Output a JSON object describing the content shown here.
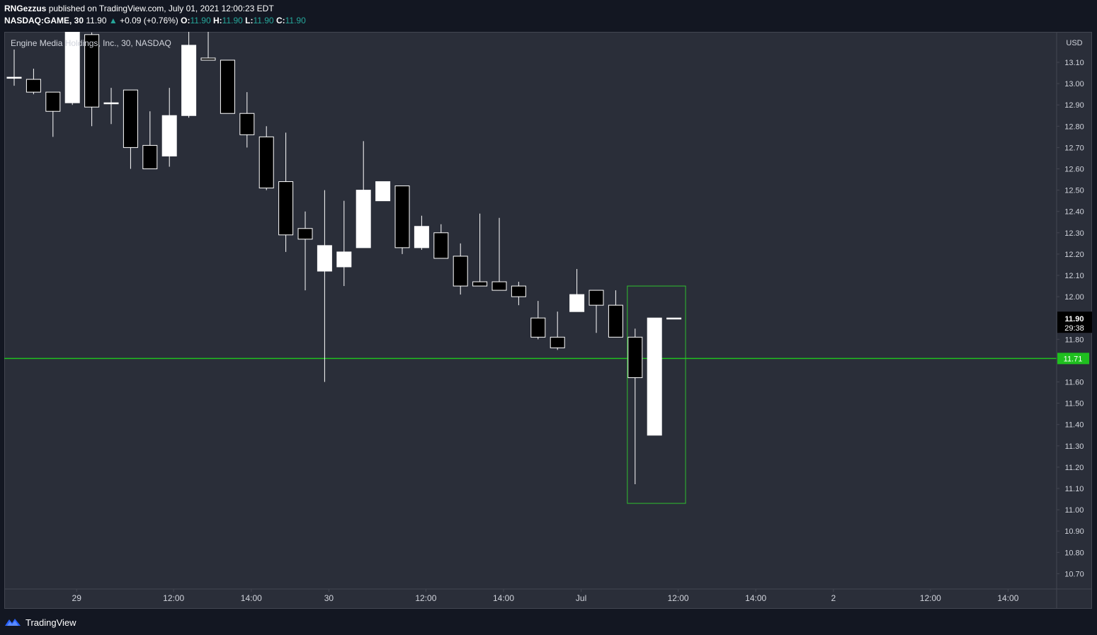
{
  "header": {
    "author": "RNGezzus",
    "published_text": "published on TradingView.com, July 01, 2021 12:00:23 EDT",
    "symbol": "NASDAQ:GAME, 30",
    "last": "11.90",
    "arrow": "▲",
    "change": "+0.09 (+0.76%)",
    "o_label": "O:",
    "o_value": "11.90",
    "h_label": "H:",
    "h_value": "11.90",
    "l_label": "L:",
    "l_value": "11.90",
    "c_label": "C:",
    "c_value": "11.90"
  },
  "footer": {
    "brand": "TradingView",
    "logo_icon": "tradingview-logo-icon"
  },
  "chart_data": {
    "type": "candlestick",
    "title": "Engine Media Holdings, Inc., 30, NASDAQ",
    "currency": "USD",
    "y_axis": {
      "ticks": [
        "13.10",
        "13.00",
        "12.90",
        "12.80",
        "12.70",
        "12.60",
        "12.50",
        "12.40",
        "12.30",
        "12.20",
        "12.10",
        "12.00",
        "11.90",
        "11.80",
        "11.71",
        "11.60",
        "11.50",
        "11.40",
        "11.30",
        "11.20",
        "11.10",
        "11.00",
        "10.90",
        "10.80",
        "10.70"
      ],
      "range": [
        10.66,
        13.25
      ]
    },
    "x_axis": {
      "ticks": [
        {
          "label": "29",
          "i": 3
        },
        {
          "label": "12:00",
          "i": 8
        },
        {
          "label": "14:00",
          "i": 12
        },
        {
          "label": "30",
          "i": 16
        },
        {
          "label": "12:00",
          "i": 21
        },
        {
          "label": "14:00",
          "i": 25
        },
        {
          "label": "Jul",
          "i": 29
        },
        {
          "label": "12:00",
          "i": 34
        },
        {
          "label": "14:00",
          "i": 38
        },
        {
          "label": "2",
          "i": 42
        },
        {
          "label": "12:00",
          "i": 47
        },
        {
          "label": "14:00",
          "i": 51
        }
      ]
    },
    "colors": {
      "up": "#ffffff",
      "down": "#000000",
      "wick": "#ffffff",
      "level_line": "#1fbf1f",
      "box": "#2fbf2f",
      "price_label_bg": "#000000",
      "level_label_bg": "#1fbf1f"
    },
    "candles": [
      {
        "o": 13.03,
        "h": 13.16,
        "l": 12.99,
        "c": 13.03
      },
      {
        "o": 13.02,
        "h": 13.07,
        "l": 12.95,
        "c": 12.96
      },
      {
        "o": 12.96,
        "h": 12.96,
        "l": 12.75,
        "c": 12.87
      },
      {
        "o": 12.91,
        "h": 13.25,
        "l": 12.9,
        "c": 13.25
      },
      {
        "o": 13.23,
        "h": 13.24,
        "l": 12.8,
        "c": 12.89
      },
      {
        "o": 12.91,
        "h": 12.98,
        "l": 12.81,
        "c": 12.91
      },
      {
        "o": 12.97,
        "h": 12.97,
        "l": 12.6,
        "c": 12.7
      },
      {
        "o": 12.71,
        "h": 12.87,
        "l": 12.6,
        "c": 12.6
      },
      {
        "o": 12.66,
        "h": 12.98,
        "l": 12.61,
        "c": 12.85
      },
      {
        "o": 12.85,
        "h": 13.25,
        "l": 12.84,
        "c": 13.18
      },
      {
        "o": 13.12,
        "h": 13.25,
        "l": 13.11,
        "c": 13.11
      },
      {
        "o": 13.11,
        "h": 13.11,
        "l": 12.86,
        "c": 12.86
      },
      {
        "o": 12.86,
        "h": 12.96,
        "l": 12.7,
        "c": 12.76
      },
      {
        "o": 12.75,
        "h": 12.8,
        "l": 12.5,
        "c": 12.51
      },
      {
        "o": 12.54,
        "h": 12.77,
        "l": 12.21,
        "c": 12.29
      },
      {
        "o": 12.32,
        "h": 12.4,
        "l": 12.03,
        "c": 12.27
      },
      {
        "o": 12.12,
        "h": 12.5,
        "l": 11.6,
        "c": 12.24
      },
      {
        "o": 12.14,
        "h": 12.45,
        "l": 12.05,
        "c": 12.21
      },
      {
        "o": 12.23,
        "h": 12.73,
        "l": 12.23,
        "c": 12.5
      },
      {
        "o": 12.45,
        "h": 12.54,
        "l": 12.45,
        "c": 12.54
      },
      {
        "o": 12.52,
        "h": 12.52,
        "l": 12.2,
        "c": 12.23
      },
      {
        "o": 12.23,
        "h": 12.38,
        "l": 12.22,
        "c": 12.33
      },
      {
        "o": 12.3,
        "h": 12.34,
        "l": 12.18,
        "c": 12.18
      },
      {
        "o": 12.19,
        "h": 12.25,
        "l": 12.01,
        "c": 12.05
      },
      {
        "o": 12.07,
        "h": 12.39,
        "l": 12.05,
        "c": 12.05
      },
      {
        "o": 12.07,
        "h": 12.37,
        "l": 12.03,
        "c": 12.03
      },
      {
        "o": 12.05,
        "h": 12.07,
        "l": 11.96,
        "c": 12.0
      },
      {
        "o": 11.9,
        "h": 11.98,
        "l": 11.8,
        "c": 11.81
      },
      {
        "o": 11.81,
        "h": 11.93,
        "l": 11.75,
        "c": 11.76
      },
      {
        "o": 11.93,
        "h": 12.13,
        "l": 11.93,
        "c": 12.01
      },
      {
        "o": 12.03,
        "h": 12.03,
        "l": 11.83,
        "c": 11.96
      },
      {
        "o": 11.96,
        "h": 12.03,
        "l": 11.81,
        "c": 11.81
      },
      {
        "o": 11.81,
        "h": 11.85,
        "l": 11.12,
        "c": 11.62
      },
      {
        "o": 11.35,
        "h": 11.9,
        "l": 11.35,
        "c": 11.9
      },
      {
        "o": 11.9,
        "h": 11.9,
        "l": 11.9,
        "c": 11.9
      }
    ],
    "price_label": {
      "value": "11.90",
      "countdown": "29:38"
    },
    "level_line": {
      "value": 11.71,
      "label": "11.71"
    },
    "highlight_box": {
      "i_start": 31.6,
      "i_end": 34.6,
      "top": 12.05,
      "bottom": 11.03
    }
  }
}
